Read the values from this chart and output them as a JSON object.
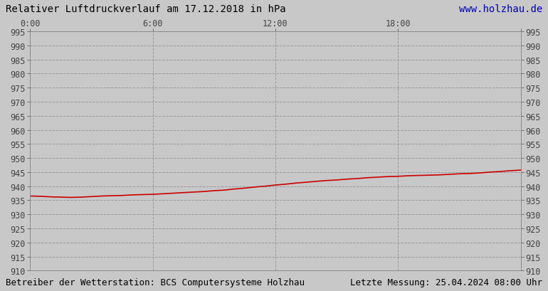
{
  "title": "Relativer Luftdruckverlauf am 17.12.2018 in hPa",
  "url": "www.holzhau.de",
  "footer_left": "Betreiber der Wetterstation: BCS Computersysteme Holzhau",
  "footer_right": "Letzte Messung: 25.04.2024 08:00 Uhr",
  "bg_color": "#c8c8c8",
  "plot_bg_color": "#c8c8c8",
  "line_color": "#cc0000",
  "grid_color": "#999999",
  "ylim": [
    910,
    995
  ],
  "xlim": [
    0,
    1440
  ],
  "ytick_step": 5,
  "xticks": [
    0,
    360,
    720,
    1080,
    1440
  ],
  "xtick_labels": [
    "0:00",
    "6:00",
    "12:00",
    "18:00",
    ""
  ],
  "title_fontsize": 10,
  "tick_fontsize": 8.5,
  "footer_fontsize": 9,
  "pressure_x": [
    0,
    30,
    60,
    90,
    120,
    150,
    180,
    210,
    240,
    270,
    300,
    330,
    360,
    390,
    420,
    450,
    480,
    510,
    540,
    570,
    600,
    630,
    660,
    690,
    720,
    750,
    780,
    810,
    840,
    870,
    900,
    930,
    960,
    990,
    1020,
    1050,
    1080,
    1110,
    1140,
    1170,
    1200,
    1230,
    1260,
    1290,
    1320,
    1350,
    1380,
    1410,
    1440
  ],
  "pressure_y": [
    936.5,
    936.4,
    936.2,
    936.1,
    936.0,
    936.1,
    936.3,
    936.5,
    936.6,
    936.7,
    936.9,
    937.0,
    937.1,
    937.3,
    937.5,
    937.7,
    937.9,
    938.1,
    938.4,
    938.6,
    939.0,
    939.3,
    939.7,
    940.0,
    940.4,
    940.7,
    941.1,
    941.4,
    941.7,
    942.0,
    942.2,
    942.5,
    942.7,
    943.0,
    943.2,
    943.4,
    943.5,
    943.7,
    943.8,
    943.9,
    944.0,
    944.2,
    944.4,
    944.5,
    944.7,
    945.0,
    945.2,
    945.5,
    945.7
  ]
}
